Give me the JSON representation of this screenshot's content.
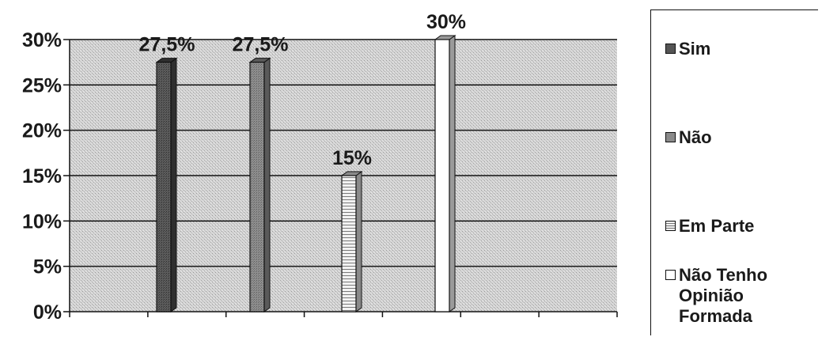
{
  "chart_data": {
    "type": "bar",
    "title": "",
    "xlabel": "",
    "ylabel": "",
    "ylim": [
      0,
      30
    ],
    "yticks": [
      "0%",
      "5%",
      "10%",
      "15%",
      "20%",
      "25%",
      "30%"
    ],
    "grid": true,
    "legend_position": "right",
    "series": [
      {
        "name": "Sim",
        "value": 27.5,
        "label": "27,5%",
        "color": "#555555",
        "pattern": "dark"
      },
      {
        "name": "Não",
        "value": 27.5,
        "label": "27,5%",
        "color": "#8a8a8a",
        "pattern": "medium"
      },
      {
        "name": "Em Parte",
        "value": 15,
        "label": "15%",
        "color": "#e6e6e6",
        "pattern": "hatched"
      },
      {
        "name": "Não Tenho Opinião Formada",
        "value": 30,
        "label": "30%",
        "color": "#ffffff",
        "pattern": "white"
      }
    ]
  },
  "legend": {
    "items": [
      {
        "label": "Sim",
        "color": "#555555"
      },
      {
        "label": "Não",
        "color": "#8a8a8a"
      },
      {
        "label": "Em Parte",
        "color": "#e6e6e6"
      },
      {
        "label": "Não Tenho Opinião Formada",
        "color": "#ffffff"
      }
    ]
  }
}
